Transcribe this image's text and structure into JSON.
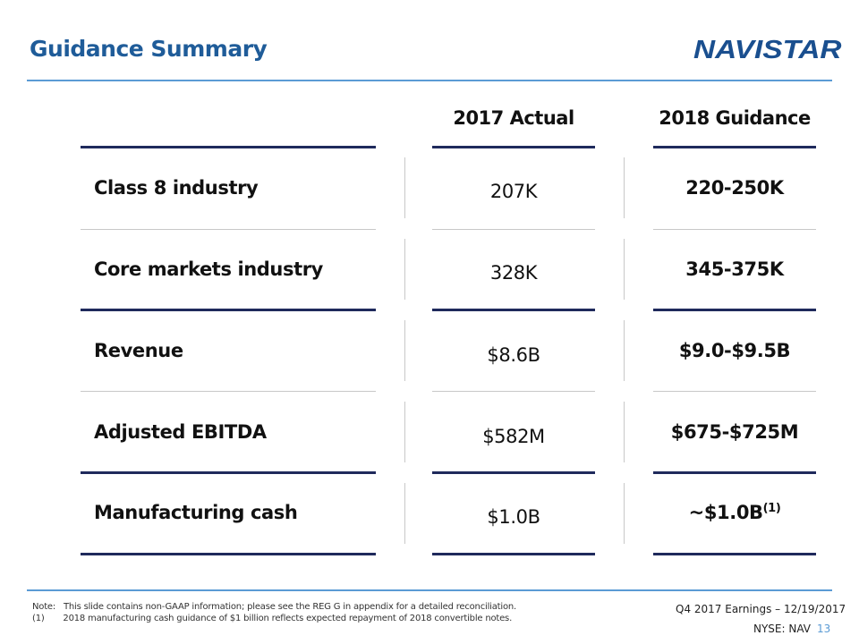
{
  "title": "Guidance Summary",
  "logo": "NAVISTAR",
  "columns": [
    "2017 Actual",
    "2018 Guidance"
  ],
  "rows": [
    {
      "label": "Class 8 industry",
      "actual_2017": "207K",
      "guidance_2018": "220-250K"
    },
    {
      "label": "Core markets industry",
      "actual_2017": "328K",
      "guidance_2018": "345-375K"
    },
    {
      "label": "Revenue",
      "actual_2017": "$8.6B",
      "guidance_2018": "$9.0-$9.5B"
    },
    {
      "label": "Adjusted EBITDA",
      "actual_2017": "$582M",
      "guidance_2018": "$675-$725M"
    },
    {
      "label": "Manufacturing cash",
      "actual_2017": "$1.0B",
      "guidance_2018": "~$1.0B",
      "footnote_ref": "(1)"
    }
  ],
  "notes": {
    "note": "Note:   This slide contains non-GAAP information; please see the REG G in appendix for a detailed reconciliation.",
    "footnote_1": "(1)       2018 manufacturing cash guidance of $1 billion reflects expected repayment of 2018 convertible notes."
  },
  "footer": {
    "event": "Q4 2017 Earnings – 12/19/2017",
    "ticker": "NYSE: NAV",
    "page": "13"
  },
  "colors": {
    "title": "#1f5c99",
    "rule": "#5b9bd5",
    "table_line": "#1f2a5c"
  }
}
